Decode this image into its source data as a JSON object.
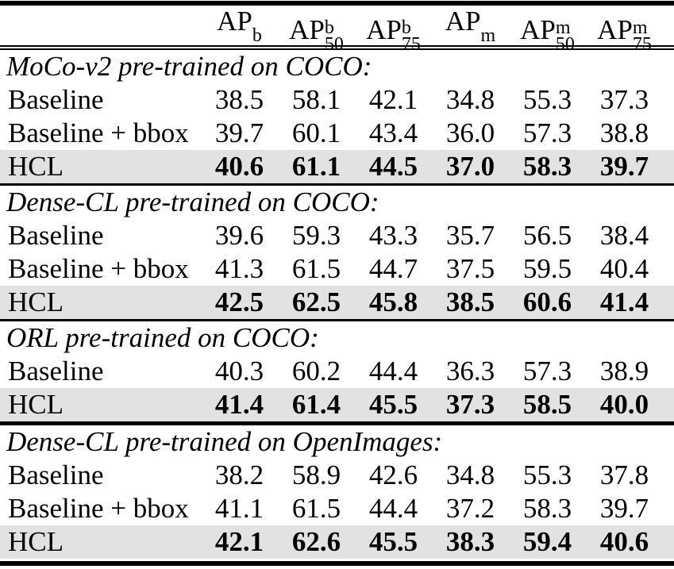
{
  "table": {
    "colors": {
      "highlight_bg": "#e2e2e2",
      "rule": "#000000",
      "text": "#000000"
    },
    "columns": [
      {
        "base": "AP",
        "sup": "b",
        "sub": ""
      },
      {
        "base": "AP",
        "sup": "b",
        "sub": "50"
      },
      {
        "base": "AP",
        "sup": "b",
        "sub": "75"
      },
      {
        "base": "AP",
        "sup": "m",
        "sub": ""
      },
      {
        "base": "AP",
        "sup": "m",
        "sub": "50"
      },
      {
        "base": "AP",
        "sup": "m",
        "sub": "75"
      }
    ],
    "sections": [
      {
        "header": "MoCo-v2 pre-trained on COCO:",
        "rows": [
          {
            "label": "Baseline",
            "highlight": false,
            "values": [
              "38.5",
              "58.1",
              "42.1",
              "34.8",
              "55.3",
              "37.3"
            ]
          },
          {
            "label": "Baseline + bbox",
            "highlight": false,
            "values": [
              "39.7",
              "60.1",
              "43.4",
              "36.0",
              "57.3",
              "38.8"
            ]
          },
          {
            "label": "HCL",
            "highlight": true,
            "values": [
              "40.6",
              "61.1",
              "44.5",
              "37.0",
              "58.3",
              "39.7"
            ]
          }
        ]
      },
      {
        "header": "Dense-CL pre-trained on COCO:",
        "rows": [
          {
            "label": "Baseline",
            "highlight": false,
            "values": [
              "39.6",
              "59.3",
              "43.3",
              "35.7",
              "56.5",
              "38.4"
            ]
          },
          {
            "label": "Baseline + bbox",
            "highlight": false,
            "values": [
              "41.3",
              "61.5",
              "44.7",
              "37.5",
              "59.5",
              "40.4"
            ]
          },
          {
            "label": "HCL",
            "highlight": true,
            "values": [
              "42.5",
              "62.5",
              "45.8",
              "38.5",
              "60.6",
              "41.4"
            ]
          }
        ]
      },
      {
        "header": "ORL pre-trained on COCO:",
        "rows": [
          {
            "label": "Baseline",
            "highlight": false,
            "values": [
              "40.3",
              "60.2",
              "44.4",
              "36.3",
              "57.3",
              "38.9"
            ]
          },
          {
            "label": "HCL",
            "highlight": true,
            "values": [
              "41.4",
              "61.4",
              "45.5",
              "37.3",
              "58.5",
              "40.0"
            ]
          }
        ]
      },
      {
        "header": "Dense-CL pre-trained on OpenImages:",
        "rows": [
          {
            "label": "Baseline",
            "highlight": false,
            "values": [
              "38.2",
              "58.9",
              "42.6",
              "34.8",
              "55.3",
              "37.8"
            ]
          },
          {
            "label": "Baseline + bbox",
            "highlight": false,
            "values": [
              "41.1",
              "61.5",
              "44.4",
              "37.2",
              "58.3",
              "39.7"
            ]
          },
          {
            "label": "HCL",
            "highlight": true,
            "values": [
              "42.1",
              "62.6",
              "45.5",
              "38.3",
              "59.4",
              "40.6"
            ]
          }
        ]
      }
    ]
  }
}
